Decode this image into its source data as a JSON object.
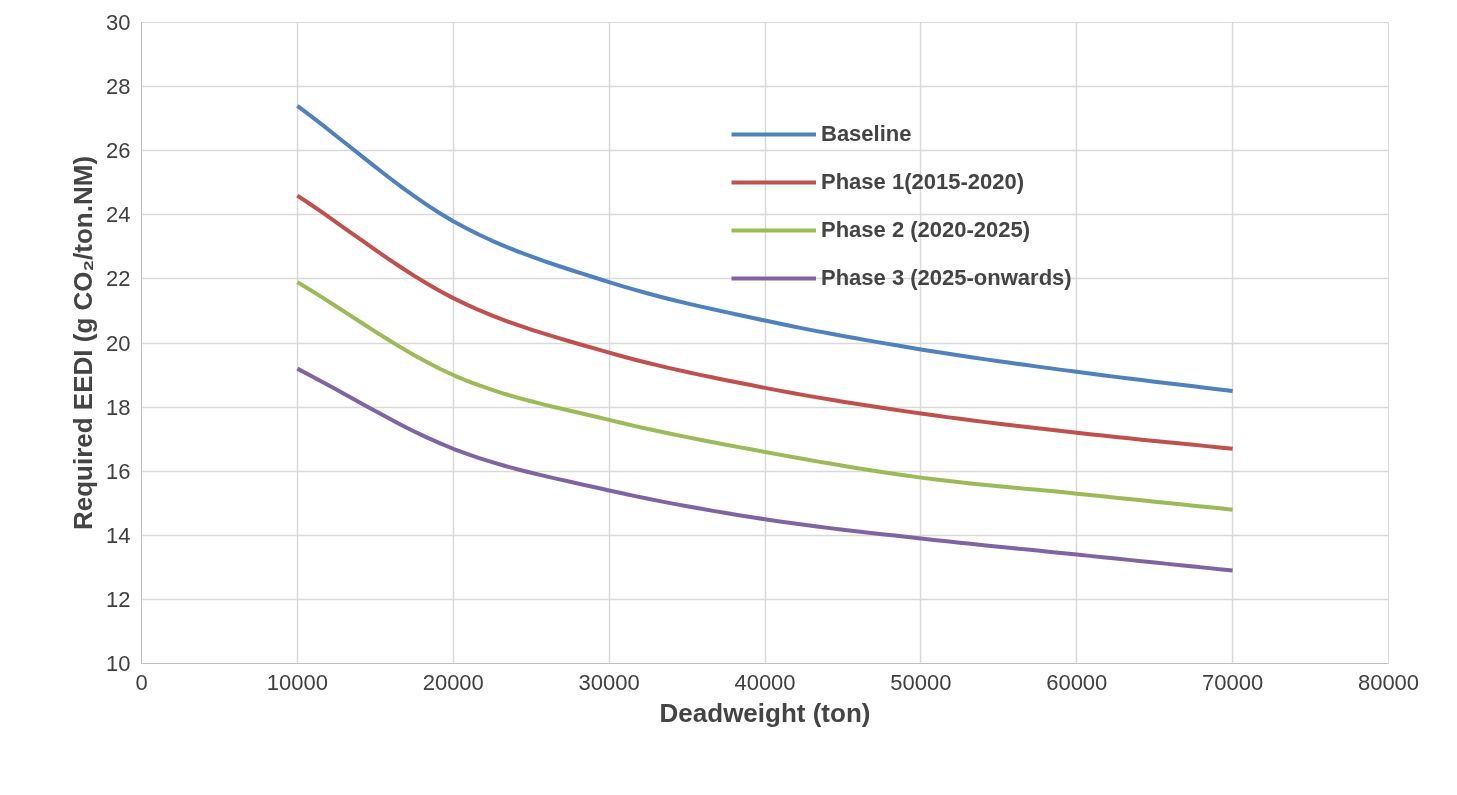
{
  "chart_data": {
    "type": "line",
    "xlabel": "Deadweight (ton)",
    "ylabel": "Required EEDI (g CO₂/ton.NM)",
    "x": [
      10000,
      20000,
      30000,
      40000,
      50000,
      60000,
      70000
    ],
    "series": [
      {
        "name": "Baseline",
        "color": "#4f81bd",
        "values": [
          27.4,
          23.8,
          21.9,
          20.7,
          19.8,
          19.1,
          18.5
        ]
      },
      {
        "name": "Phase 1(2015-2020)",
        "color": "#c0504d",
        "values": [
          24.6,
          21.4,
          19.7,
          18.6,
          17.8,
          17.2,
          16.7
        ]
      },
      {
        "name": "Phase 2 (2020-2025)",
        "color": "#9bbb59",
        "values": [
          21.9,
          19.0,
          17.6,
          16.6,
          15.8,
          15.3,
          14.8
        ]
      },
      {
        "name": "Phase 3 (2025-onwards)",
        "color": "#8064a2",
        "values": [
          19.2,
          16.7,
          15.4,
          14.5,
          13.9,
          13.4,
          12.9
        ]
      }
    ],
    "xlim": [
      0,
      80000
    ],
    "xticks": [
      0,
      10000,
      20000,
      30000,
      40000,
      50000,
      60000,
      70000,
      80000
    ],
    "ylim": [
      10,
      30
    ],
    "yticks": [
      10,
      12,
      14,
      16,
      18,
      20,
      22,
      24,
      26,
      28,
      30
    ],
    "grid": true,
    "legend": "top right",
    "marker": "none",
    "line_style": "solid"
  }
}
